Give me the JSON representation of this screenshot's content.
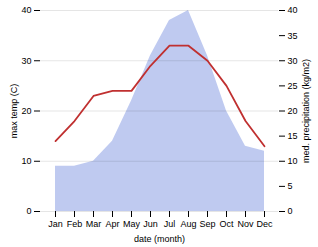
{
  "chart_data": {
    "type": "line",
    "categories": [
      "Jan",
      "Feb",
      "Mar",
      "Apr",
      "May",
      "Jun",
      "Jul",
      "Aug",
      "Sep",
      "Oct",
      "Nov",
      "Dec"
    ],
    "series": [
      {
        "type": "area",
        "color": "#b8c4ee",
        "axis": "y2",
        "values": [
          9,
          9,
          10,
          14,
          22,
          31,
          38,
          40,
          31,
          20,
          13,
          12
        ]
      },
      {
        "type": "line",
        "color": "#c03030",
        "values": [
          14,
          18,
          23,
          24,
          24,
          29,
          33,
          33,
          30,
          25,
          18,
          13
        ]
      }
    ],
    "xlabel": "date (month)",
    "ylabel": "max temp (C)",
    "y2label": "med. precipitation (kg/m2)",
    "ylim": [
      0,
      40
    ],
    "yticks": [
      0,
      10,
      20,
      30,
      40
    ],
    "y2lim": [
      0,
      40
    ],
    "y2ticks": [
      0,
      5,
      10,
      15,
      20,
      25,
      30,
      35,
      40
    ],
    "grid": true
  }
}
